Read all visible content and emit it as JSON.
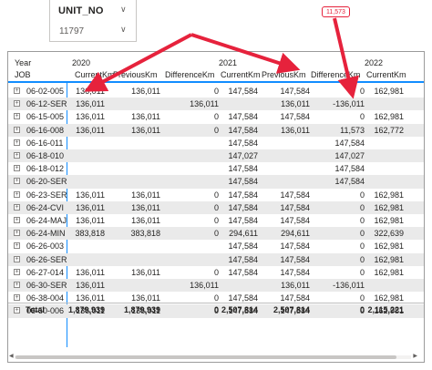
{
  "slicer": {
    "title": "UNIT_NO",
    "value": "11797"
  },
  "callout": "11,573",
  "matrix": {
    "row_header_year": "Year",
    "row_header_job": "JOB",
    "years": [
      "2020",
      "2021",
      "2022"
    ],
    "measures": [
      "CurrentKm",
      "PreviousKm",
      "DifferenceKm"
    ],
    "rows": [
      {
        "job": "06-02-005",
        "c2020": "136,011",
        "p2020": "136,011",
        "d2020": "0",
        "c2021": "147,584",
        "p2021": "147,584",
        "d2021": "0",
        "c2022": "162,981"
      },
      {
        "job": "06-12-SER",
        "c2020": "136,011",
        "p2020": "",
        "d2020": "136,011",
        "c2021": "",
        "p2021": "136,011",
        "d2021": "-136,011",
        "c2022": ""
      },
      {
        "job": "06-15-005",
        "c2020": "136,011",
        "p2020": "136,011",
        "d2020": "0",
        "c2021": "147,584",
        "p2021": "147,584",
        "d2021": "0",
        "c2022": "162,981"
      },
      {
        "job": "06-16-008",
        "c2020": "136,011",
        "p2020": "136,011",
        "d2020": "0",
        "c2021": "147,584",
        "p2021": "136,011",
        "d2021": "11,573",
        "c2022": "162,772"
      },
      {
        "job": "06-16-011",
        "c2020": "",
        "p2020": "",
        "d2020": "",
        "c2021": "147,584",
        "p2021": "",
        "d2021": "147,584",
        "c2022": ""
      },
      {
        "job": "06-18-010",
        "c2020": "",
        "p2020": "",
        "d2020": "",
        "c2021": "147,027",
        "p2021": "",
        "d2021": "147,027",
        "c2022": ""
      },
      {
        "job": "06-18-012",
        "c2020": "",
        "p2020": "",
        "d2020": "",
        "c2021": "147,584",
        "p2021": "",
        "d2021": "147,584",
        "c2022": ""
      },
      {
        "job": "06-20-SER",
        "c2020": "",
        "p2020": "",
        "d2020": "",
        "c2021": "147,584",
        "p2021": "",
        "d2021": "147,584",
        "c2022": ""
      },
      {
        "job": "06-23-SER",
        "c2020": "136,011",
        "p2020": "136,011",
        "d2020": "0",
        "c2021": "147,584",
        "p2021": "147,584",
        "d2021": "0",
        "c2022": "162,981"
      },
      {
        "job": "06-24-CVI",
        "c2020": "136,011",
        "p2020": "136,011",
        "d2020": "0",
        "c2021": "147,584",
        "p2021": "147,584",
        "d2021": "0",
        "c2022": "162,981"
      },
      {
        "job": "06-24-MAJ",
        "c2020": "136,011",
        "p2020": "136,011",
        "d2020": "0",
        "c2021": "147,584",
        "p2021": "147,584",
        "d2021": "0",
        "c2022": "162,981"
      },
      {
        "job": "06-24-MIN",
        "c2020": "383,818",
        "p2020": "383,818",
        "d2020": "0",
        "c2021": "294,611",
        "p2021": "294,611",
        "d2021": "0",
        "c2022": "322,639"
      },
      {
        "job": "06-26-003",
        "c2020": "",
        "p2020": "",
        "d2020": "",
        "c2021": "147,584",
        "p2021": "147,584",
        "d2021": "0",
        "c2022": "162,981"
      },
      {
        "job": "06-26-SER",
        "c2020": "",
        "p2020": "",
        "d2020": "",
        "c2021": "147,584",
        "p2021": "147,584",
        "d2021": "0",
        "c2022": "162,981"
      },
      {
        "job": "06-27-014",
        "c2020": "136,011",
        "p2020": "136,011",
        "d2020": "0",
        "c2021": "147,584",
        "p2021": "147,584",
        "d2021": "0",
        "c2022": "162,981"
      },
      {
        "job": "06-30-SER",
        "c2020": "136,011",
        "p2020": "",
        "d2020": "136,011",
        "c2021": "",
        "p2021": "136,011",
        "d2021": "-136,011",
        "c2022": ""
      },
      {
        "job": "06-38-004",
        "c2020": "136,011",
        "p2020": "136,011",
        "d2020": "0",
        "c2021": "147,584",
        "p2021": "147,584",
        "d2021": "0",
        "c2022": "162,981"
      },
      {
        "job": "06-50-006",
        "c2020": "136,011",
        "p2020": "136,011",
        "d2020": "0",
        "c2021": "147,584",
        "p2021": "147,584",
        "d2021": "0",
        "c2022": "162,981"
      }
    ],
    "total": {
      "job": "Total",
      "c2020": "1,879,939",
      "p2020": "1,879,939",
      "d2020": "0",
      "c2021": "2,507,814",
      "p2021": "2,507,814",
      "d2021": "0",
      "c2022": "2,115,221"
    }
  },
  "colors": {
    "accent": "#118dff",
    "arrow": "#e6223c",
    "alt_row": "#eaeaea"
  },
  "icons": {
    "expand": "plus-square-icon",
    "dropdown": "chevron-down-icon"
  }
}
